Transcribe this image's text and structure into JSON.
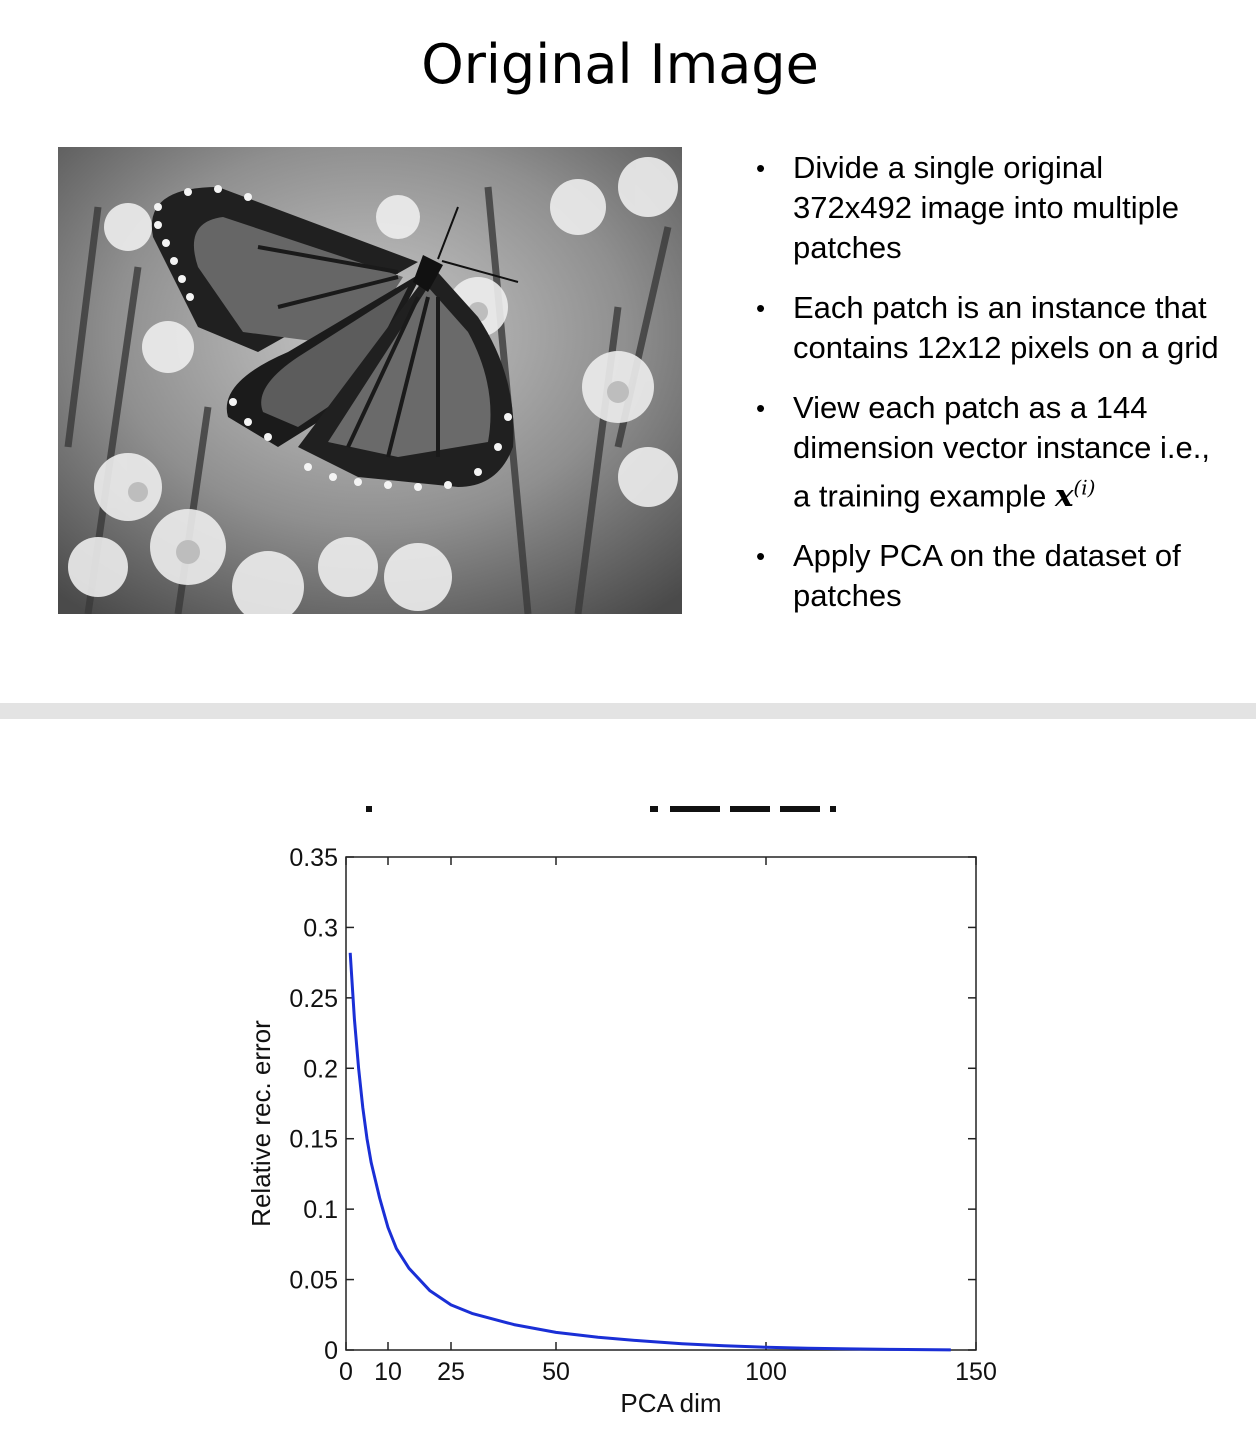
{
  "slide": {
    "title": "Original Image",
    "image_alt": "butterfly photo",
    "bullets": [
      {
        "text": "Divide a single original 372x492 image into multiple patches"
      },
      {
        "text": "Each patch is an instance that contains 12x12 pixels on a grid"
      },
      {
        "text": "View each patch as a 144 dimension vector instance i.e., a training example ",
        "math": "x",
        "math_sup": "(i)"
      },
      {
        "text": "Apply PCA on the dataset of patches"
      }
    ]
  },
  "chart_data": {
    "type": "line",
    "title": "",
    "xlabel": "PCA dim",
    "ylabel": "Relative rec. error",
    "xlim": [
      0,
      150
    ],
    "ylim": [
      0,
      0.35
    ],
    "xticks": [
      0,
      10,
      25,
      50,
      100,
      150
    ],
    "yticks": [
      0,
      0.05,
      0.1,
      0.15,
      0.2,
      0.25,
      0.3,
      0.35
    ],
    "ytick_labels": [
      "0",
      "0.05",
      "0.1",
      "0.15",
      "0.2",
      "0.25",
      "0.3",
      "0.35"
    ],
    "grid": false,
    "line_color": "#1a2fd6",
    "series": [
      {
        "x": [
          1,
          2,
          3,
          4,
          5,
          6,
          8,
          10,
          12,
          15,
          20,
          25,
          30,
          40,
          50,
          60,
          70,
          80,
          90,
          100,
          110,
          120,
          130,
          144
        ],
        "values": [
          0.282,
          0.235,
          0.2,
          0.172,
          0.15,
          0.133,
          0.108,
          0.087,
          0.072,
          0.058,
          0.042,
          0.032,
          0.026,
          0.018,
          0.0125,
          0.009,
          0.0065,
          0.0045,
          0.003,
          0.002,
          0.0013,
          0.0008,
          0.0004,
          0.0001
        ]
      }
    ]
  }
}
